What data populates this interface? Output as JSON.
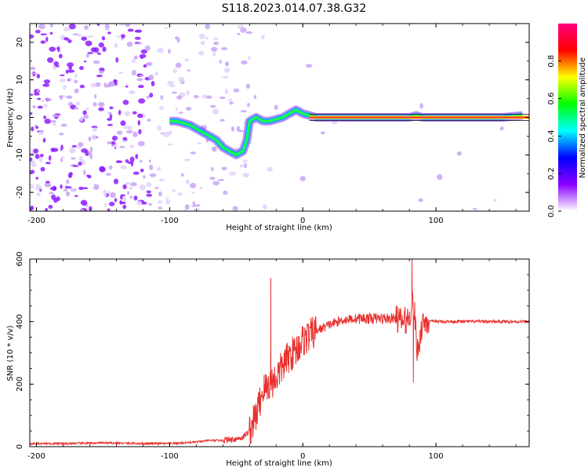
{
  "title": "S118.2023.014.07.38.G32",
  "chart_data": [
    {
      "type": "heatmap",
      "xlabel": "Height of straight line (km)",
      "ylabel": "Frequency (Hz)",
      "xlim": [
        -205,
        170
      ],
      "ylim": [
        -25,
        25
      ],
      "x_ticks": [
        -200,
        -100,
        0,
        100
      ],
      "y_ticks": [
        -20,
        -10,
        0,
        10,
        20
      ],
      "colorbar": {
        "label": "Normalized spectral amplitude",
        "ticks": [
          0.0,
          0.2,
          0.4,
          0.6,
          0.8
        ],
        "range": [
          0,
          1
        ],
        "colors": [
          "#ffffff",
          "#8a00ff",
          "#0000ff",
          "#00ffff",
          "#00ff00",
          "#ffff00",
          "#ff0000",
          "#ff0080"
        ]
      },
      "trace": {
        "x": [
          -100,
          -95,
          -90,
          -85,
          -80,
          -75,
          -70,
          -65,
          -60,
          -55,
          -50,
          -45,
          -42,
          -40,
          -35,
          -30,
          -25,
          -20,
          -15,
          -10,
          -5,
          0,
          5,
          10,
          20,
          40,
          60,
          80,
          85,
          90,
          100,
          120,
          150,
          165
        ],
        "y": [
          -1,
          -1,
          -1.5,
          -2,
          -3,
          -4,
          -5,
          -6,
          -8,
          -9,
          -10,
          -9,
          -6,
          -1,
          0,
          -1,
          -1,
          -0.5,
          0,
          1,
          2,
          1,
          0.5,
          0,
          0,
          0,
          0,
          0,
          0.5,
          0,
          0,
          0,
          0,
          0.5
        ]
      }
    },
    {
      "type": "line",
      "xlabel": "Height of straight line (km)",
      "ylabel": "SNR (10 * v/v)",
      "xlim": [
        -205,
        170
      ],
      "ylim": [
        0,
        600
      ],
      "x_ticks": [
        -200,
        -100,
        0,
        100
      ],
      "y_ticks": [
        0,
        200,
        400,
        600
      ],
      "color": "#e8312f",
      "x": [
        -205,
        -180,
        -150,
        -120,
        -100,
        -90,
        -80,
        -70,
        -60,
        -50,
        -45,
        -40,
        -35,
        -30,
        -25,
        -20,
        -15,
        -10,
        -5,
        0,
        10,
        20,
        30,
        40,
        50,
        60,
        70,
        75,
        80,
        82,
        84,
        86,
        90,
        100,
        110,
        120,
        130,
        140,
        150,
        160,
        170
      ],
      "values": [
        10,
        10,
        12,
        10,
        10,
        12,
        15,
        20,
        20,
        25,
        30,
        50,
        100,
        180,
        200,
        220,
        260,
        290,
        310,
        340,
        370,
        390,
        405,
        410,
        410,
        410,
        410,
        400,
        410,
        470,
        420,
        300,
        400,
        400,
        400,
        400,
        400,
        400,
        400,
        400,
        400
      ],
      "spikes": [
        {
          "x": -24,
          "value": 540
        },
        {
          "x": 82,
          "value": 600
        },
        {
          "x": 83,
          "value": 205
        }
      ]
    }
  ]
}
